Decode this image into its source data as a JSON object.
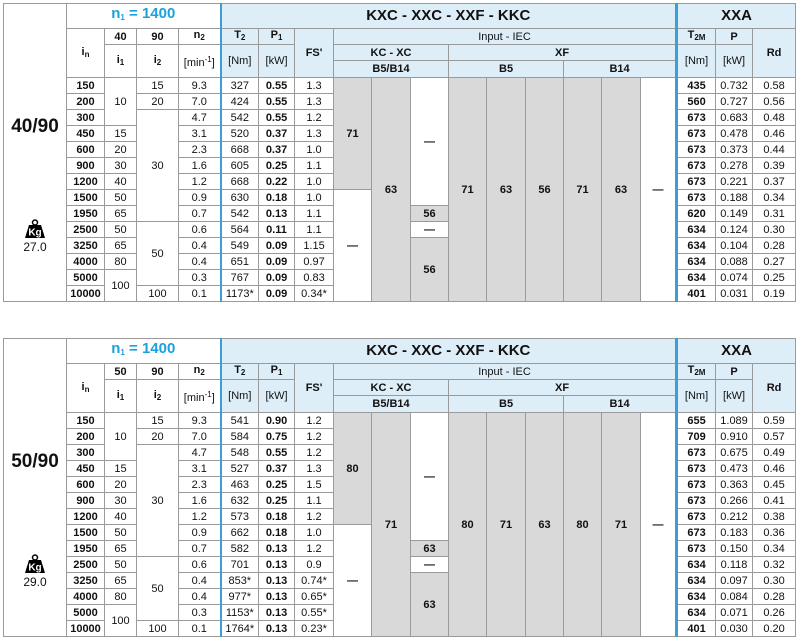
{
  "tables": [
    {
      "model": "40/90",
      "weight_unit": "Kg",
      "weight": "27.0",
      "header": {
        "n1": {
          "text": "n",
          "sub": "1",
          "after": " = 1400"
        },
        "ratio1": "40",
        "ratio2": "90",
        "title": "KXC - XXC - XXF - KKC",
        "xxa": "XXA",
        "in": {
          "text": "i",
          "sub": "n"
        },
        "i1": {
          "text": "i",
          "sub": "1"
        },
        "i2": {
          "text": "i",
          "sub": "2"
        },
        "n2": {
          "text": "n",
          "sub": "2"
        },
        "n2_unit": {
          "text": "[min",
          "sup": "-1",
          "after": "]"
        },
        "T2": {
          "text": "T",
          "sub": "2"
        },
        "T2_unit": "[Nm]",
        "P1": {
          "text": "P",
          "sub": "1"
        },
        "P1_unit": "[kW]",
        "FS": "FS'",
        "input": "Input  -  IEC",
        "kc_xc": "KC - XC",
        "xf": "XF",
        "b5b14": "B5/B14",
        "b5": "B5",
        "b14": "B14",
        "T2M": {
          "text": "T",
          "sub": "2M"
        },
        "T2M_unit": "[Nm]",
        "P": "P",
        "P_unit": "[kW]",
        "Rd": "Rd"
      },
      "in": [
        "150",
        "200",
        "300",
        "450",
        "600",
        "900",
        "1200",
        "1500",
        "1950",
        "2500",
        "3250",
        "4000",
        "5000",
        "10000"
      ],
      "i1": [
        "10",
        "15",
        "20",
        "30",
        "40",
        "50",
        "65",
        "50",
        "65",
        "80",
        "100"
      ],
      "i2": [
        "15",
        "20",
        "30",
        "50",
        "100"
      ],
      "n2": [
        "9.3",
        "7.0",
        "4.7",
        "3.1",
        "2.3",
        "1.6",
        "1.2",
        "0.9",
        "0.7",
        "0.6",
        "0.4",
        "0.4",
        "0.3",
        "0.1"
      ],
      "T2": [
        "327",
        "424",
        "542",
        "520",
        "668",
        "605",
        "668",
        "630",
        "542",
        "564",
        "549",
        "651",
        "767",
        "1173*"
      ],
      "P1": [
        "0.55",
        "0.55",
        "0.55",
        "0.37",
        "0.37",
        "0.25",
        "0.22",
        "0.18",
        "0.13",
        "0.11",
        "0.09",
        "0.09",
        "0.09",
        "0.09"
      ],
      "FS": [
        "1.3",
        "1.3",
        "1.2",
        "1.3",
        "1.0",
        "1.1",
        "1.0",
        "1.0",
        "1.1",
        "1.1",
        "1.15",
        "0.97",
        "0.83",
        "0.34*"
      ],
      "kc1": [
        "71",
        "—"
      ],
      "kc2": [
        "63"
      ],
      "kc3": [
        "—",
        "56",
        "—",
        "56"
      ],
      "xf": [
        "71",
        "63",
        "56",
        "71",
        "63",
        "—"
      ],
      "T2M": [
        "435",
        "560",
        "673",
        "673",
        "673",
        "673",
        "673",
        "673",
        "620",
        "634",
        "634",
        "634",
        "634",
        "401"
      ],
      "P": [
        "0.732",
        "0.727",
        "0.683",
        "0.478",
        "0.373",
        "0.278",
        "0.221",
        "0.188",
        "0.149",
        "0.124",
        "0.104",
        "0.088",
        "0.074",
        "0.031"
      ],
      "Rd": [
        "0.58",
        "0.56",
        "0.48",
        "0.46",
        "0.44",
        "0.39",
        "0.37",
        "0.34",
        "0.31",
        "0.30",
        "0.28",
        "0.27",
        "0.25",
        "0.19"
      ]
    },
    {
      "model": "50/90",
      "weight_unit": "Kg",
      "weight": "29.0",
      "header": {
        "n1": {
          "text": "n",
          "sub": "1",
          "after": " = 1400"
        },
        "ratio1": "50",
        "ratio2": "90",
        "title": "KXC - XXC - XXF - KKC",
        "xxa": "XXA",
        "in": {
          "text": "i",
          "sub": "n"
        },
        "i1": {
          "text": "i",
          "sub": "1"
        },
        "i2": {
          "text": "i",
          "sub": "2"
        },
        "n2": {
          "text": "n",
          "sub": "2"
        },
        "n2_unit": {
          "text": "[min",
          "sup": "-1",
          "after": "]"
        },
        "T2": {
          "text": "T",
          "sub": "2"
        },
        "T2_unit": "[Nm]",
        "P1": {
          "text": "P",
          "sub": "1"
        },
        "P1_unit": "[kW]",
        "FS": "FS'",
        "input": "Input  -  IEC",
        "kc_xc": "KC - XC",
        "xf": "XF",
        "b5b14": "B5/B14",
        "b5": "B5",
        "b14": "B14",
        "T2M": {
          "text": "T",
          "sub": "2M"
        },
        "T2M_unit": "[Nm]",
        "P": "P",
        "P_unit": "[kW]",
        "Rd": "Rd"
      },
      "in": [
        "150",
        "200",
        "300",
        "450",
        "600",
        "900",
        "1200",
        "1500",
        "1950",
        "2500",
        "3250",
        "4000",
        "5000",
        "10000"
      ],
      "i1": [
        "10",
        "15",
        "20",
        "30",
        "40",
        "50",
        "65",
        "50",
        "65",
        "80",
        "100"
      ],
      "i2": [
        "15",
        "20",
        "30",
        "50",
        "100"
      ],
      "n2": [
        "9.3",
        "7.0",
        "4.7",
        "3.1",
        "2.3",
        "1.6",
        "1.2",
        "0.9",
        "0.7",
        "0.6",
        "0.4",
        "0.4",
        "0.3",
        "0.1"
      ],
      "T2": [
        "541",
        "584",
        "548",
        "527",
        "463",
        "632",
        "573",
        "662",
        "582",
        "701",
        "853*",
        "977*",
        "1153*",
        "1764*"
      ],
      "P1": [
        "0.90",
        "0.75",
        "0.55",
        "0.37",
        "0.25",
        "0.25",
        "0.18",
        "0.18",
        "0.13",
        "0.13",
        "0.13",
        "0.13",
        "0.13",
        "0.13"
      ],
      "FS": [
        "1.2",
        "1.2",
        "1.2",
        "1.3",
        "1.5",
        "1.1",
        "1.2",
        "1.0",
        "1.2",
        "0.9",
        "0.74*",
        "0.65*",
        "0.55*",
        "0.23*"
      ],
      "kc1": [
        "80",
        "—"
      ],
      "kc2": [
        "71"
      ],
      "kc3": [
        "—",
        "63",
        "—",
        "63"
      ],
      "xf": [
        "80",
        "71",
        "63",
        "80",
        "71",
        "—"
      ],
      "T2M": [
        "655",
        "709",
        "673",
        "673",
        "673",
        "673",
        "673",
        "673",
        "673",
        "634",
        "634",
        "634",
        "634",
        "401"
      ],
      "P": [
        "1.089",
        "0.910",
        "0.675",
        "0.473",
        "0.363",
        "0.266",
        "0.212",
        "0.183",
        "0.150",
        "0.118",
        "0.097",
        "0.084",
        "0.071",
        "0.030"
      ],
      "Rd": [
        "0.59",
        "0.57",
        "0.49",
        "0.46",
        "0.45",
        "0.41",
        "0.38",
        "0.36",
        "0.34",
        "0.32",
        "0.30",
        "0.28",
        "0.26",
        "0.20"
      ]
    }
  ]
}
